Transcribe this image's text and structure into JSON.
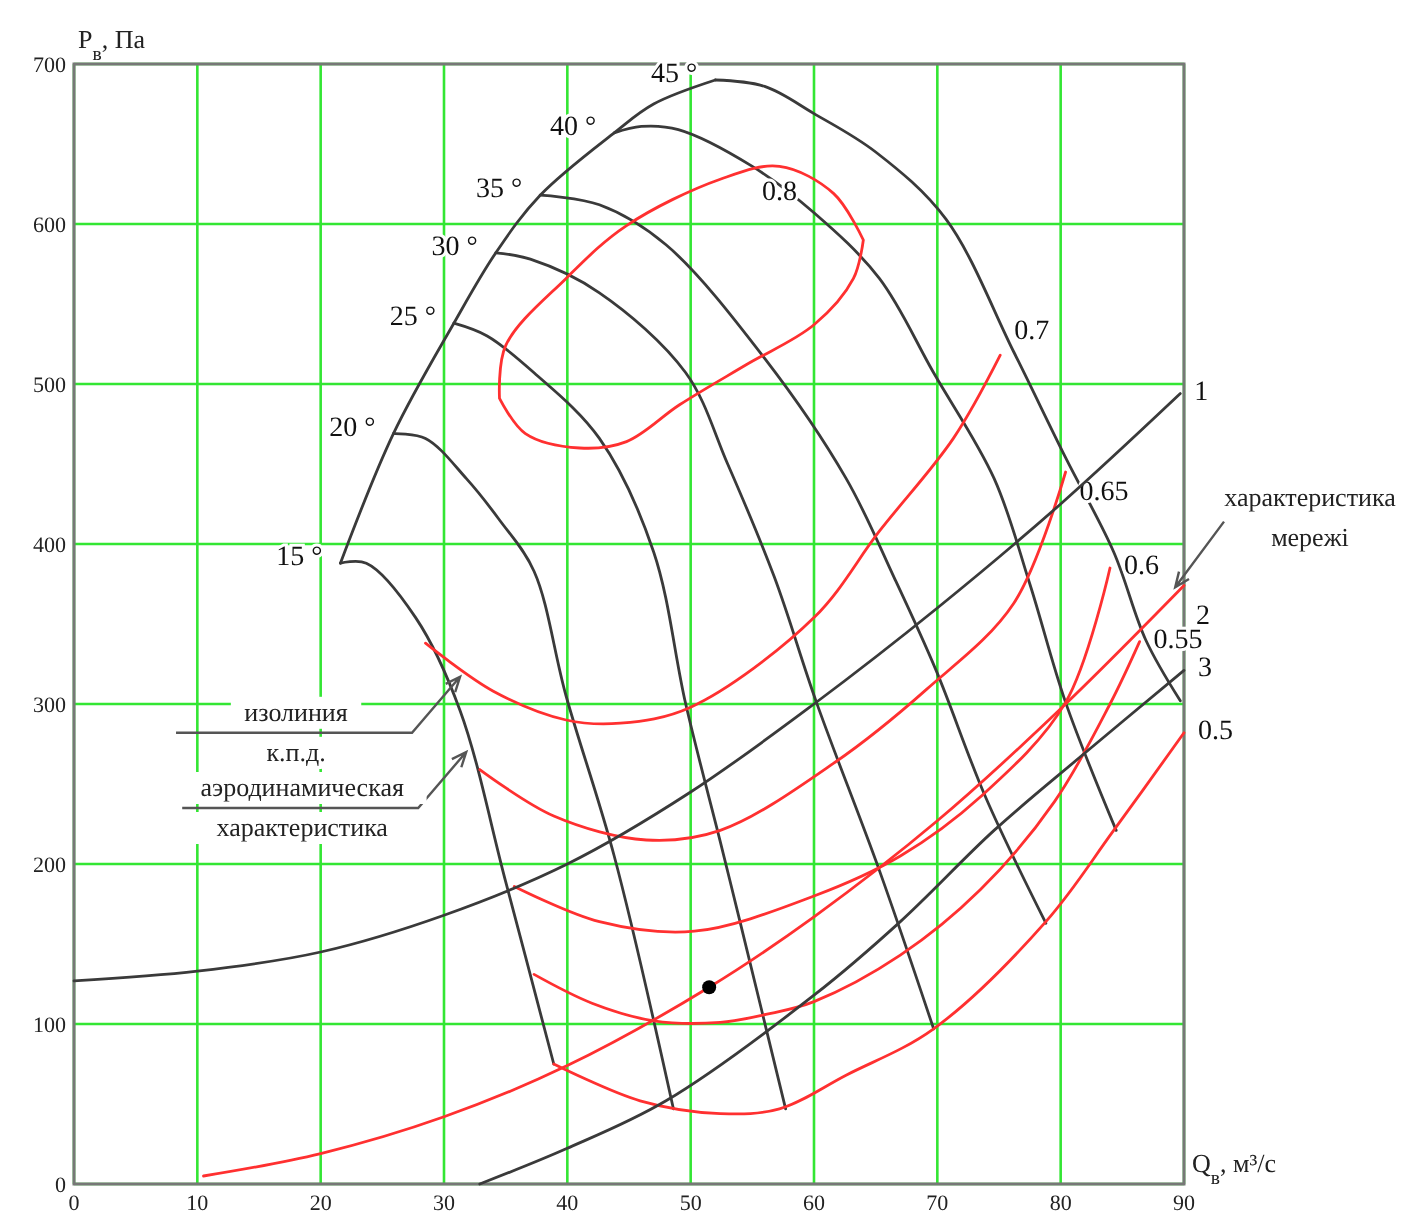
{
  "chart_data": {
    "type": "line",
    "xlabel": "Q$_{в}$, м³/с",
    "ylabel": "P$_{в}$, Па",
    "xlim": [
      0,
      90
    ],
    "ylim": [
      0,
      700
    ],
    "xticks": [
      0,
      10,
      20,
      30,
      40,
      50,
      60,
      70,
      80,
      90
    ],
    "yticks": [
      0,
      100,
      200,
      300,
      400,
      500,
      600,
      700
    ],
    "grid": true,
    "series": [
      {
        "name": "15 °",
        "color": "#3a3a3a",
        "x": [
          38.9,
          35,
          31.3,
          27.7,
          23.7,
          21.6
        ],
        "values": [
          75,
          189,
          296,
          354,
          388,
          388
        ]
      },
      {
        "name": "20 °",
        "color": "#3a3a3a",
        "x": [
          48.6,
          43.8,
          39.9,
          37.3,
          34.5,
          31.8,
          28.5,
          25.9
        ],
        "values": [
          47,
          205,
          305,
          383,
          415,
          441,
          466,
          469
        ]
      },
      {
        "name": "25 °",
        "color": "#3a3a3a",
        "x": [
          57.7,
          54,
          52.4,
          49.6,
          47,
          42.6,
          37.3,
          33.5,
          30.8
        ],
        "values": [
          47,
          164,
          214,
          300,
          395,
          466,
          507,
          530,
          538
        ]
      },
      {
        "name": "30 °",
        "color": "#3a3a3a",
        "x": [
          69.7,
          65.3,
          60.2,
          56.8,
          53,
          49.6,
          42.6,
          37,
          34.2
        ],
        "values": [
          97,
          196,
          301,
          379,
          450,
          507,
          557,
          578,
          582
        ]
      },
      {
        "name": "35 °",
        "color": "#3a3a3a",
        "x": [
          78.8,
          73.9,
          69.9,
          66.5,
          62.6,
          56,
          48,
          42.6,
          37.8
        ],
        "values": [
          163,
          242,
          321,
          379,
          441,
          516,
          587,
          612,
          618
        ]
      },
      {
        "name": "40 °",
        "color": "#3a3a3a",
        "x": [
          84.5,
          80.4,
          77.5,
          74.6,
          69.7,
          65.3,
          60,
          55,
          49,
          46,
          43.8
        ],
        "values": [
          221,
          301,
          375,
          441,
          507,
          566,
          607,
          636,
          659,
          661,
          657
        ]
      },
      {
        "name": "45 °",
        "color": "#3a3a3a",
        "x": [
          89.7,
          86.9,
          84.3,
          80.4,
          76.2,
          70.7,
          65,
          60,
          56,
          52
        ],
        "values": [
          302,
          340,
          395,
          454,
          520,
          603,
          645,
          669,
          686,
          690
        ]
      },
      {
        "color": "#3a3a3a",
        "x": [
          21.6,
          25.9,
          30.8,
          34.2,
          37.8,
          43.8,
          47,
          52
        ],
        "values": [
          388,
          469,
          538,
          582,
          618,
          657,
          675,
          690
        ]
      },
      {
        "name": "0.8",
        "color": "#ff3030",
        "x": [
          34.5,
          35,
          39.9,
          44.8,
          52.4,
          57.2,
          61.6,
          64,
          null,
          34.5,
          36.6,
          41,
          44.8,
          49.1,
          54.5,
          60,
          63.2,
          64
        ],
        "values": [
          491,
          524,
          566,
          599,
          628,
          636,
          619,
          590,
          null,
          491,
          469,
          460,
          464,
          487,
          512,
          537,
          566,
          590
        ]
      },
      {
        "name": "0.7",
        "color": "#ff3030",
        "x": [
          28.5,
          34,
          39.9,
          44.3,
          50,
          60,
          65.3,
          71.3,
          75.1
        ],
        "values": [
          338,
          308,
          290,
          288,
          298,
          354,
          408,
          466,
          518
        ]
      },
      {
        "name": "0.65",
        "color": "#ff3030",
        "x": [
          32.9,
          38.9,
          46.4,
          52.4,
          61.6,
          69.1,
          76.2,
          80.4
        ],
        "values": [
          259,
          230,
          215,
          221,
          263,
          309,
          363,
          445
        ]
      },
      {
        "name": "0.6",
        "color": "#ff3030",
        "x": [
          35.7,
          42.6,
          50.3,
          60,
          67,
          73.5,
          80.4,
          84
        ],
        "values": [
          186,
          164,
          158,
          180,
          205,
          242,
          301,
          385
        ]
      },
      {
        "name": "0.55",
        "color": "#ff3030",
        "x": [
          37.3,
          42,
          47,
          52.4,
          56.1,
          60,
          67,
          73.5,
          79.5,
          84,
          86.4
        ],
        "values": [
          131,
          113,
          102,
          101,
          106,
          114,
          143,
          184,
          239,
          300,
          339
        ]
      },
      {
        "name": "0.5",
        "color": "#ff3030",
        "x": [
          38.9,
          45.9,
          52.4,
          57.2,
          62.6,
          69.7,
          78.8,
          84.3,
          90
        ],
        "values": [
          75,
          52,
          44,
          47,
          68,
          97,
          164,
          221,
          282
        ]
      },
      {
        "name": "1",
        "color": "#3a3a3a",
        "x": [
          0,
          10,
          20,
          30,
          40,
          50,
          60,
          70,
          80,
          89.7
        ],
        "values": [
          127,
          133,
          145,
          168,
          200,
          245,
          300,
          360,
          425,
          494
        ]
      },
      {
        "name": "2",
        "color": "#ff3030",
        "x": [
          10.5,
          20,
          30,
          40,
          51.5,
          60,
          70,
          80,
          90
        ],
        "values": [
          5,
          19,
          42,
          74,
          123,
          167,
          227,
          297,
          374
        ]
      },
      {
        "name": "3",
        "color": "#3a3a3a",
        "x": [
          32.9,
          39.9,
          48,
          60,
          67,
          74.6,
          81.6,
          90
        ],
        "values": [
          0,
          22,
          52,
          118,
          164,
          221,
          267,
          321
        ]
      },
      {
        "type": "scatter",
        "color": "#000000",
        "x": [
          51.5
        ],
        "values": [
          123
        ]
      }
    ],
    "annotations": [
      {
        "text": "изолиния\nк.п.д.",
        "x": 31.3,
        "y": 317
      },
      {
        "text": "аэродинамическая\nхарактеристика",
        "x": 31.8,
        "y": 270
      },
      {
        "text": "характеристика\nмережі",
        "x": 88.9,
        "y": 369
      }
    ]
  }
}
